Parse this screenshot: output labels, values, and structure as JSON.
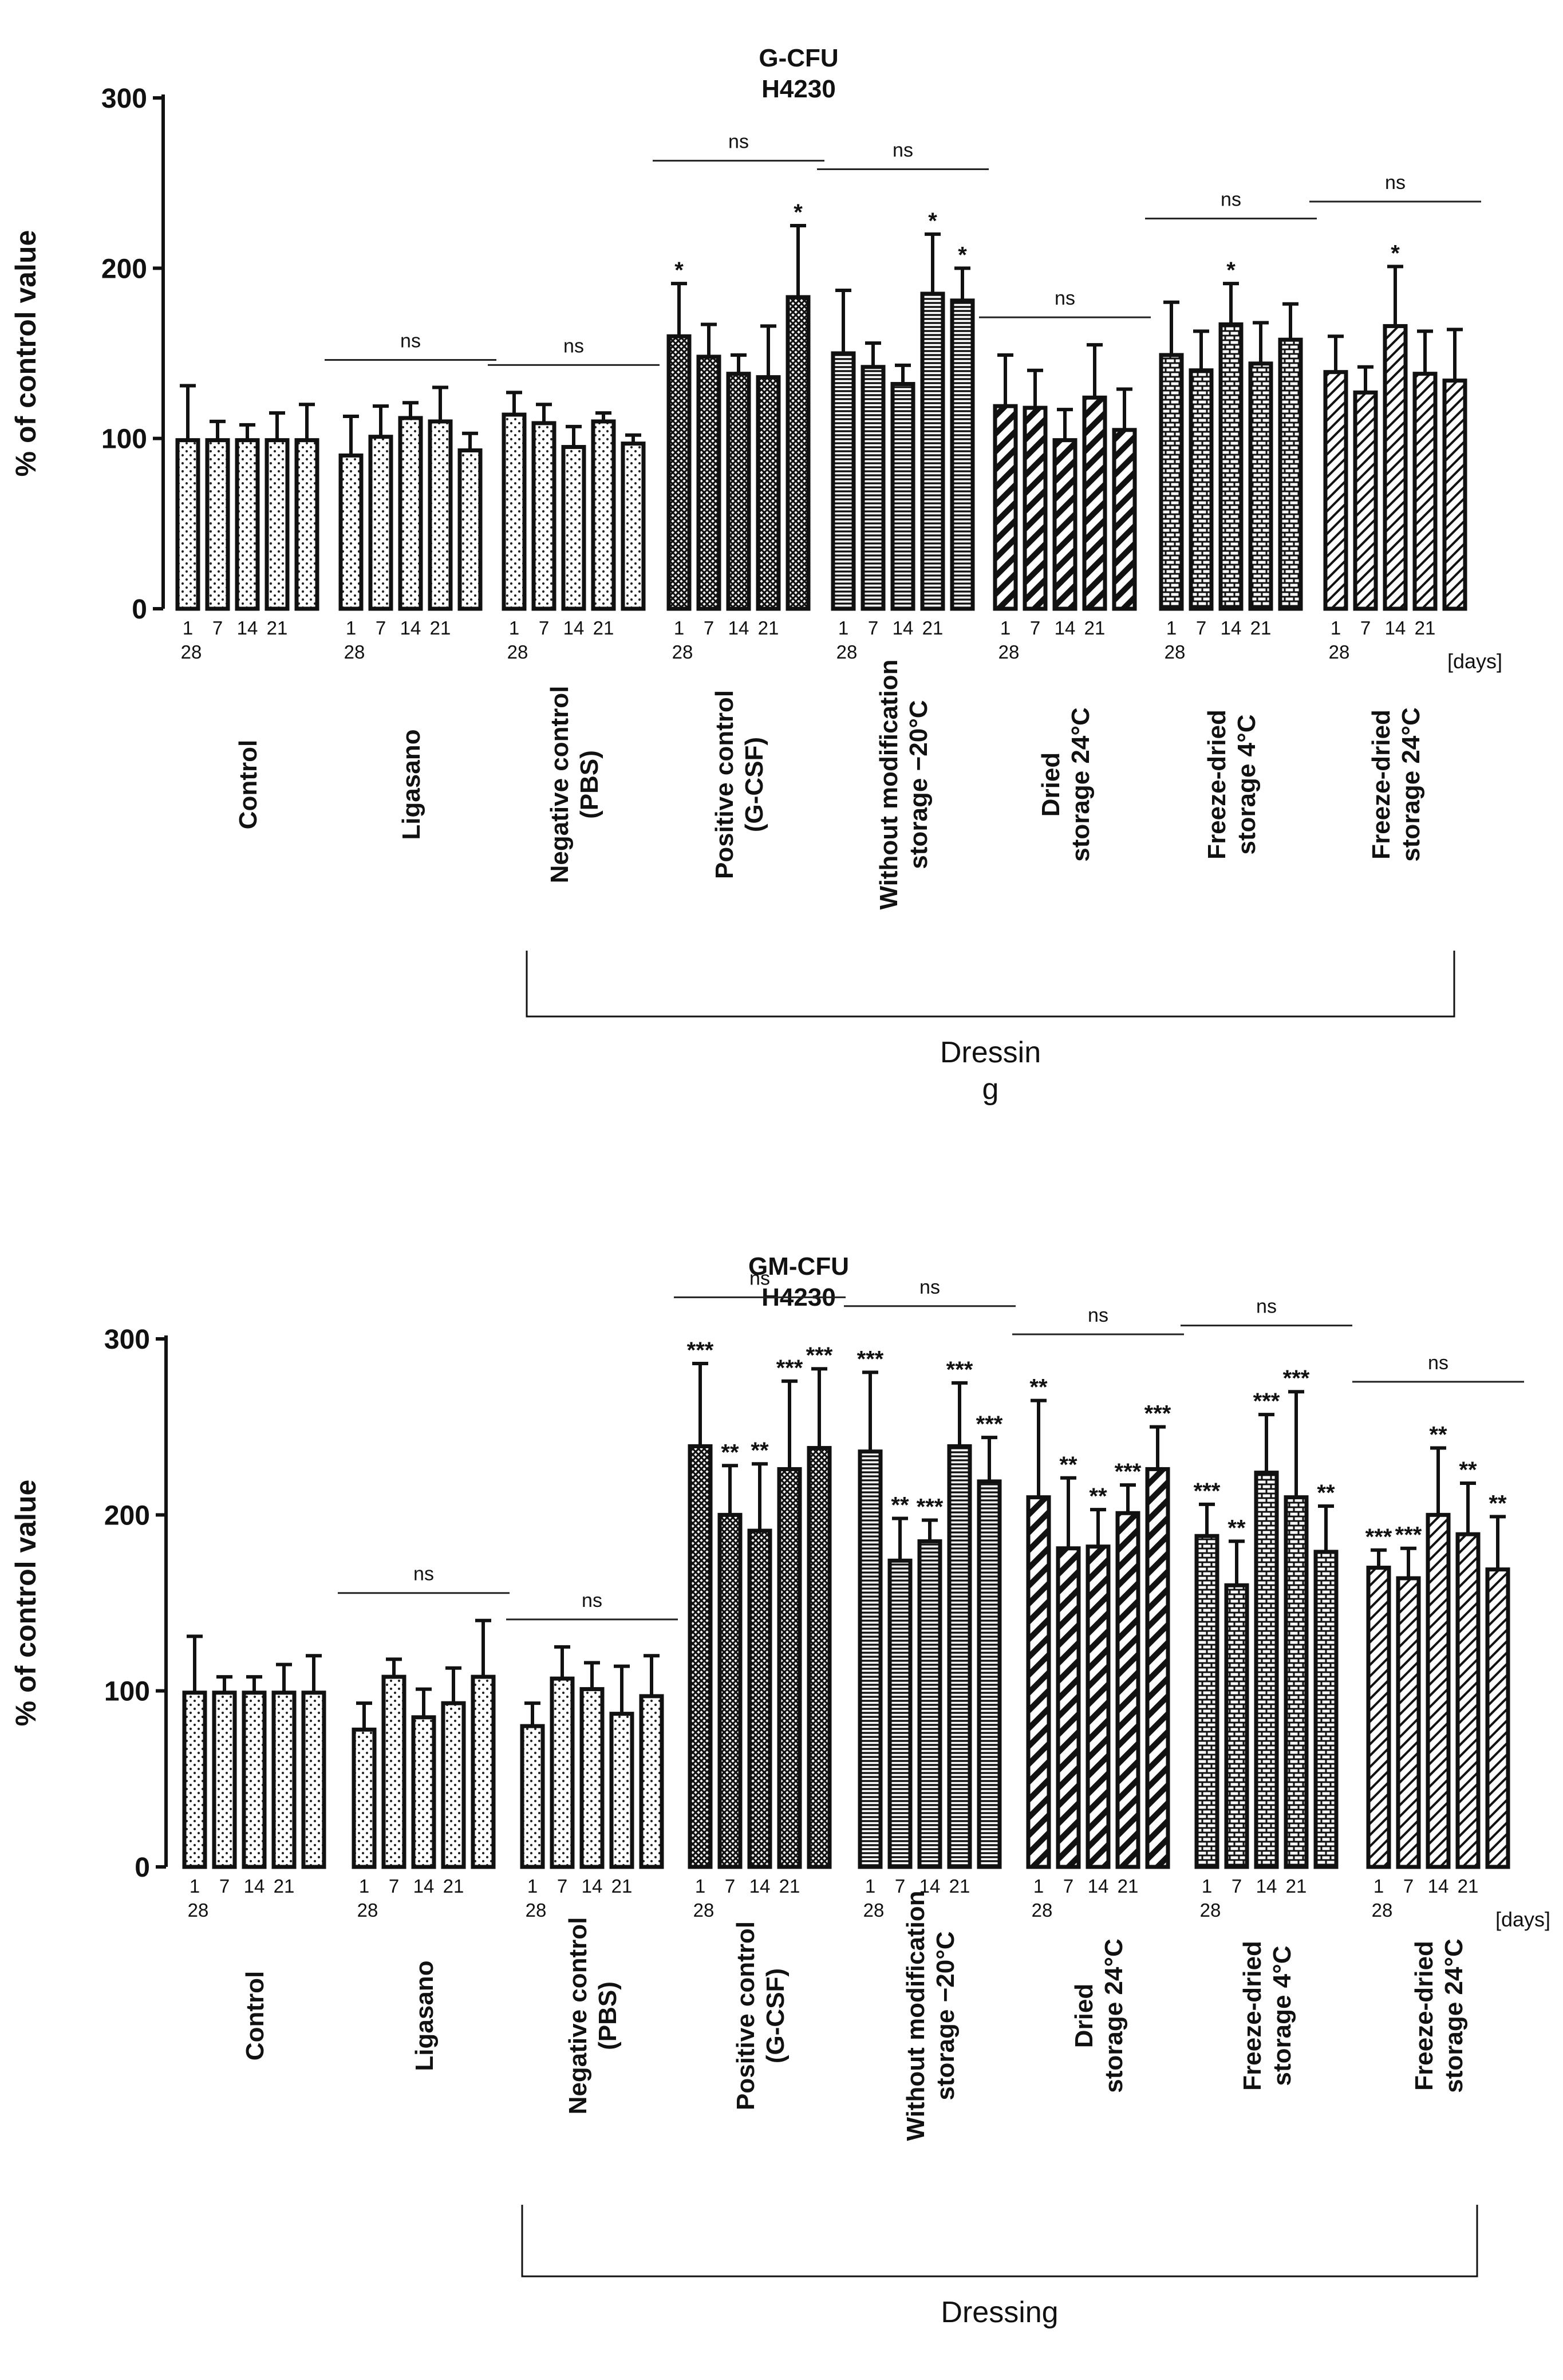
{
  "chart_data": [
    {
      "type": "bar",
      "title": "G-CFU",
      "subtitle": "H4230",
      "ylabel": "% of control value",
      "ylim": [
        0,
        300
      ],
      "yticks": [
        "0",
        "100",
        "200",
        "300"
      ],
      "day_ticks": [
        "1",
        "7",
        "14",
        "21",
        "28"
      ],
      "days_unit": "[days]",
      "bracket_label": "Dressin\ng",
      "groups": [
        {
          "name": "Control",
          "pattern": "dots",
          "values": [
            99,
            99,
            99,
            99,
            99
          ],
          "errors": [
            32,
            11,
            9,
            16,
            21
          ],
          "sig": [
            "",
            "",
            "",
            "",
            ""
          ],
          "ns": false
        },
        {
          "name": "Ligasano",
          "pattern": "dots",
          "values": [
            90,
            101,
            112,
            110,
            93
          ],
          "errors": [
            23,
            18,
            9,
            20,
            10
          ],
          "sig": [
            "",
            "",
            "",
            "",
            ""
          ],
          "ns": true
        },
        {
          "name": "Negative control\n(PBS)",
          "pattern": "dots",
          "values": [
            114,
            109,
            95,
            110,
            97
          ],
          "errors": [
            13,
            11,
            12,
            5,
            5
          ],
          "sig": [
            "",
            "",
            "",
            "",
            ""
          ],
          "ns": true
        },
        {
          "name": "Positive control\n(G-CSF)",
          "pattern": "cross",
          "values": [
            160,
            148,
            138,
            136,
            183
          ],
          "errors": [
            31,
            19,
            11,
            30,
            42
          ],
          "sig": [
            "*",
            "",
            "",
            "",
            "*"
          ],
          "ns": true
        },
        {
          "name": "Without modification\nstorage −20°C",
          "pattern": "hlines",
          "values": [
            150,
            142,
            132,
            185,
            181
          ],
          "errors": [
            37,
            14,
            11,
            35,
            19
          ],
          "sig": [
            "",
            "",
            "",
            "*",
            "*"
          ],
          "ns": true
        },
        {
          "name": "Dried\nstorage 24°C",
          "pattern": "diag-thick",
          "values": [
            119,
            118,
            99,
            124,
            105
          ],
          "errors": [
            30,
            22,
            18,
            31,
            24
          ],
          "sig": [
            "",
            "",
            "",
            "",
            ""
          ],
          "ns": true
        },
        {
          "name": "Freeze-dried\nstorage 4°C",
          "pattern": "brick",
          "values": [
            149,
            140,
            167,
            144,
            158
          ],
          "errors": [
            31,
            23,
            24,
            24,
            21
          ],
          "sig": [
            "",
            "",
            "*",
            "",
            ""
          ],
          "ns": true
        },
        {
          "name": "Freeze-dried\nstorage 24°C",
          "pattern": "diag-thin",
          "values": [
            139,
            127,
            166,
            138,
            134
          ],
          "errors": [
            21,
            15,
            35,
            25,
            30
          ],
          "sig": [
            "",
            "",
            "*",
            "",
            ""
          ],
          "ns": true
        }
      ]
    },
    {
      "type": "bar",
      "title": "GM-CFU",
      "subtitle": "H4230",
      "ylabel": "% of control value",
      "ylim": [
        0,
        300
      ],
      "yticks": [
        "0",
        "100",
        "200",
        "300"
      ],
      "day_ticks": [
        "1",
        "7",
        "14",
        "21",
        "28"
      ],
      "days_unit": "[days]",
      "bracket_label": "Dressing",
      "groups": [
        {
          "name": "Control",
          "pattern": "dots",
          "values": [
            99,
            99,
            99,
            99,
            99
          ],
          "errors": [
            32,
            9,
            9,
            16,
            21
          ],
          "sig": [
            "",
            "",
            "",
            "",
            ""
          ],
          "ns": false
        },
        {
          "name": "Ligasano",
          "pattern": "dots",
          "values": [
            78,
            108,
            85,
            93,
            108
          ],
          "errors": [
            15,
            10,
            16,
            20,
            32
          ],
          "sig": [
            "",
            "",
            "",
            "",
            ""
          ],
          "ns": true
        },
        {
          "name": "Negative control\n(PBS)",
          "pattern": "dots",
          "values": [
            80,
            107,
            101,
            87,
            97
          ],
          "errors": [
            13,
            18,
            15,
            27,
            23
          ],
          "sig": [
            "",
            "",
            "",
            "",
            ""
          ],
          "ns": true
        },
        {
          "name": "Positive control\n(G-CSF)",
          "pattern": "cross",
          "values": [
            239,
            200,
            191,
            226,
            238
          ],
          "errors": [
            47,
            28,
            38,
            50,
            45
          ],
          "sig": [
            "***",
            "**",
            "**",
            "***",
            "***"
          ],
          "ns": true
        },
        {
          "name": "Without modification\nstorage −20°C",
          "pattern": "hlines",
          "values": [
            236,
            174,
            185,
            239,
            219
          ],
          "errors": [
            45,
            24,
            12,
            36,
            25
          ],
          "sig": [
            "***",
            "**",
            "***",
            "***",
            "***"
          ],
          "ns": true
        },
        {
          "name": "Dried\nstorage 24°C",
          "pattern": "diag-thick",
          "values": [
            210,
            181,
            182,
            201,
            226
          ],
          "errors": [
            55,
            40,
            21,
            16,
            24
          ],
          "sig": [
            "**",
            "**",
            "**",
            "***",
            "***"
          ],
          "ns": true
        },
        {
          "name": "Freeze-dried\nstorage 4°C",
          "pattern": "brick",
          "values": [
            188,
            160,
            224,
            210,
            179
          ],
          "errors": [
            18,
            25,
            33,
            60,
            26
          ],
          "sig": [
            "***",
            "**",
            "***",
            "***",
            "**"
          ],
          "ns": true
        },
        {
          "name": "Freeze-dried\nstorage 24°C",
          "pattern": "diag-thin",
          "values": [
            170,
            164,
            200,
            189,
            169
          ],
          "errors": [
            10,
            17,
            38,
            29,
            30
          ],
          "sig": [
            "***",
            "***",
            "**",
            "**",
            "**"
          ],
          "ns": true
        }
      ]
    }
  ]
}
